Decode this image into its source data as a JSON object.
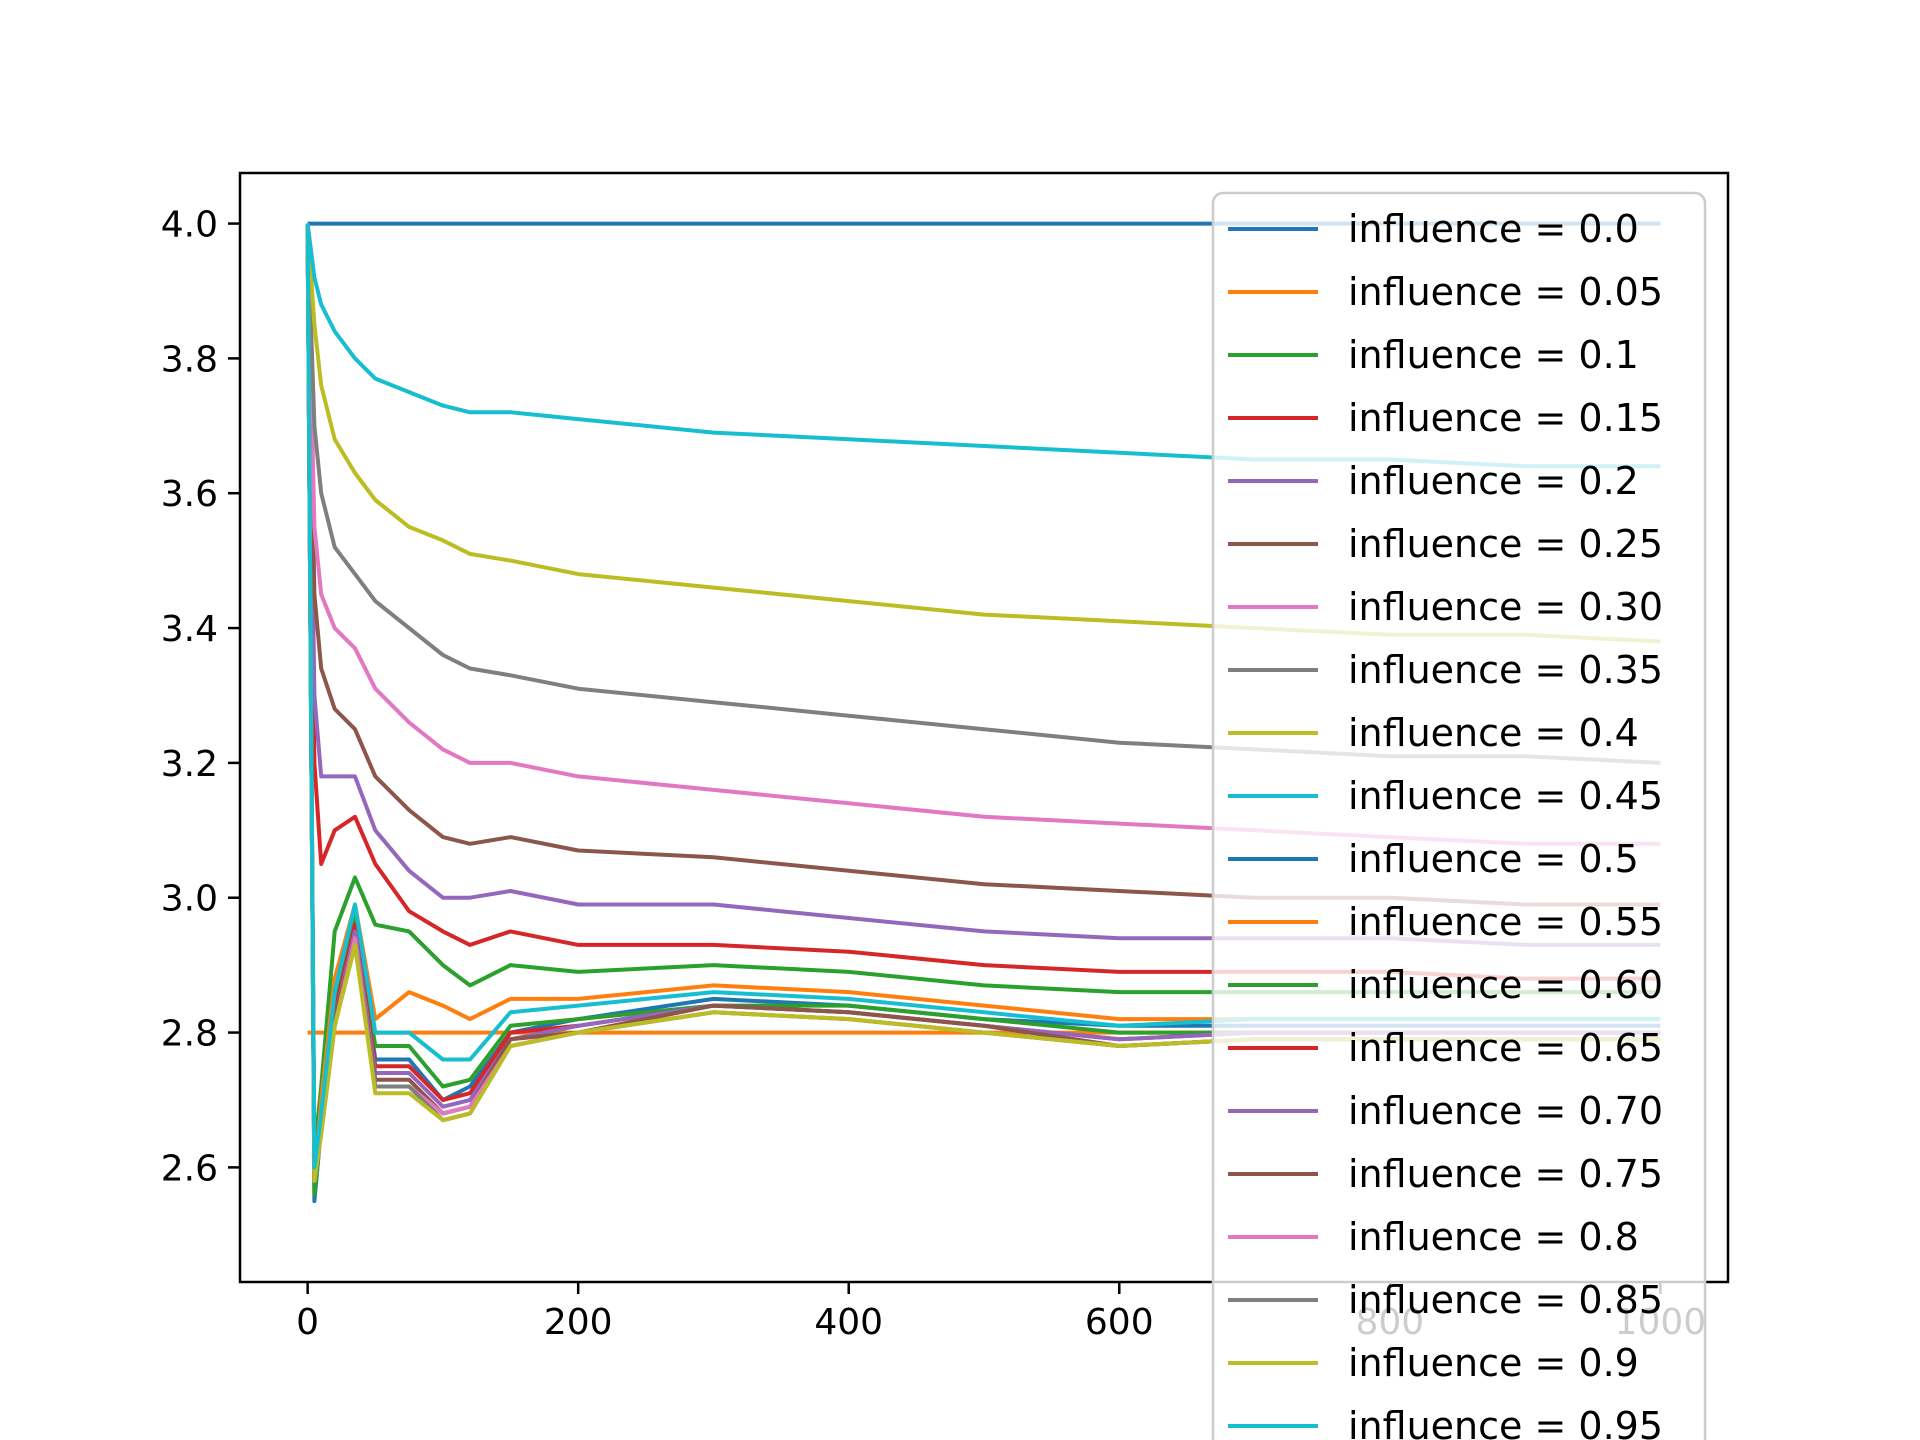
{
  "chart_data": {
    "type": "line",
    "title": "",
    "xlabel": "",
    "ylabel": "",
    "xlim": [
      -50,
      1050
    ],
    "ylim": [
      2.43,
      4.075
    ],
    "x_ticks": [
      0,
      200,
      400,
      600,
      800,
      1000
    ],
    "x_tick_labels": [
      "0",
      "200",
      "400",
      "600",
      "800",
      "1000"
    ],
    "y_ticks": [
      2.6,
      2.8,
      3.0,
      3.2,
      3.4,
      3.6,
      3.8,
      4.0
    ],
    "y_tick_labels": [
      "2.6",
      "2.8",
      "3.0",
      "3.2",
      "3.4",
      "3.6",
      "3.8",
      "4.0"
    ],
    "grid": false,
    "legend_position": "upper-right",
    "x": [
      0,
      5,
      10,
      20,
      35,
      50,
      75,
      100,
      120,
      150,
      200,
      300,
      400,
      500,
      600,
      700,
      800,
      900,
      1000
    ],
    "series": [
      {
        "name": "influence = 0.0",
        "color": "#1f77b4",
        "values": [
          4.0,
          4.0,
          4.0,
          4.0,
          4.0,
          4.0,
          4.0,
          4.0,
          4.0,
          4.0,
          4.0,
          4.0,
          4.0,
          4.0,
          4.0,
          4.0,
          4.0,
          4.0,
          4.0
        ]
      },
      {
        "name": "influence = 0.05",
        "color": "#ff7f0e",
        "values": [
          2.8,
          2.8,
          2.8,
          2.8,
          2.8,
          2.8,
          2.8,
          2.8,
          2.8,
          2.8,
          2.8,
          2.8,
          2.8,
          2.8,
          2.8,
          2.8,
          2.8,
          2.8,
          2.8
        ]
      },
      {
        "name": "influence = 0.1",
        "color": "#2ca02c",
        "values": [
          4.0,
          2.62,
          2.72,
          2.95,
          3.03,
          2.96,
          2.95,
          2.9,
          2.87,
          2.9,
          2.89,
          2.9,
          2.89,
          2.87,
          2.86,
          2.86,
          2.86,
          2.86,
          2.86
        ]
      },
      {
        "name": "influence = 0.15",
        "color": "#d62728",
        "values": [
          4.0,
          3.2,
          3.05,
          3.1,
          3.12,
          3.05,
          2.98,
          2.95,
          2.93,
          2.95,
          2.93,
          2.93,
          2.92,
          2.9,
          2.89,
          2.89,
          2.89,
          2.88,
          2.88
        ]
      },
      {
        "name": "influence = 0.2",
        "color": "#9467bd",
        "values": [
          4.0,
          3.3,
          3.18,
          3.18,
          3.18,
          3.1,
          3.04,
          3.0,
          3.0,
          3.01,
          2.99,
          2.99,
          2.97,
          2.95,
          2.94,
          2.94,
          2.94,
          2.93,
          2.93
        ]
      },
      {
        "name": "influence = 0.25",
        "color": "#8c564b",
        "values": [
          4.0,
          3.45,
          3.34,
          3.28,
          3.25,
          3.18,
          3.13,
          3.09,
          3.08,
          3.09,
          3.07,
          3.06,
          3.04,
          3.02,
          3.01,
          3.0,
          3.0,
          2.99,
          2.99
        ]
      },
      {
        "name": "influence = 0.30",
        "color": "#e377c2",
        "values": [
          4.0,
          3.55,
          3.45,
          3.4,
          3.37,
          3.31,
          3.26,
          3.22,
          3.2,
          3.2,
          3.18,
          3.16,
          3.14,
          3.12,
          3.11,
          3.1,
          3.09,
          3.08,
          3.08
        ]
      },
      {
        "name": "influence = 0.35",
        "color": "#7f7f7f",
        "values": [
          4.0,
          3.7,
          3.6,
          3.52,
          3.48,
          3.44,
          3.4,
          3.36,
          3.34,
          3.33,
          3.31,
          3.29,
          3.27,
          3.25,
          3.23,
          3.22,
          3.21,
          3.21,
          3.2
        ]
      },
      {
        "name": "influence = 0.4",
        "color": "#bcbd22",
        "values": [
          4.0,
          3.85,
          3.76,
          3.68,
          3.63,
          3.59,
          3.55,
          3.53,
          3.51,
          3.5,
          3.48,
          3.46,
          3.44,
          3.42,
          3.41,
          3.4,
          3.39,
          3.39,
          3.38
        ]
      },
      {
        "name": "influence = 0.45",
        "color": "#17becf",
        "values": [
          4.0,
          3.92,
          3.88,
          3.84,
          3.8,
          3.77,
          3.75,
          3.73,
          3.72,
          3.72,
          3.71,
          3.69,
          3.68,
          3.67,
          3.66,
          3.65,
          3.65,
          3.64,
          3.64
        ]
      },
      {
        "name": "influence = 0.5",
        "color": "#1f77b4",
        "values": [
          4.0,
          2.55,
          2.66,
          2.86,
          2.98,
          2.76,
          2.76,
          2.7,
          2.72,
          2.8,
          2.82,
          2.85,
          2.84,
          2.82,
          2.81,
          2.81,
          2.81,
          2.81,
          2.81
        ]
      },
      {
        "name": "influence = 0.55",
        "color": "#ff7f0e",
        "values": [
          4.0,
          2.57,
          2.7,
          2.88,
          2.99,
          2.82,
          2.86,
          2.84,
          2.82,
          2.85,
          2.85,
          2.87,
          2.86,
          2.84,
          2.82,
          2.82,
          2.82,
          2.82,
          2.82
        ]
      },
      {
        "name": "influence = 0.60",
        "color": "#2ca02c",
        "values": [
          4.0,
          2.56,
          2.66,
          2.84,
          2.97,
          2.78,
          2.78,
          2.72,
          2.73,
          2.81,
          2.82,
          2.84,
          2.84,
          2.82,
          2.8,
          2.8,
          2.8,
          2.8,
          2.8
        ]
      },
      {
        "name": "influence = 0.65",
        "color": "#d62728",
        "values": [
          4.0,
          2.58,
          2.66,
          2.83,
          2.96,
          2.75,
          2.75,
          2.7,
          2.71,
          2.8,
          2.81,
          2.84,
          2.83,
          2.81,
          2.79,
          2.8,
          2.8,
          2.8,
          2.8
        ]
      },
      {
        "name": "influence = 0.70",
        "color": "#9467bd",
        "values": [
          4.0,
          2.58,
          2.66,
          2.82,
          2.95,
          2.74,
          2.74,
          2.69,
          2.7,
          2.79,
          2.81,
          2.84,
          2.83,
          2.81,
          2.79,
          2.8,
          2.8,
          2.8,
          2.8
        ]
      },
      {
        "name": "influence = 0.75",
        "color": "#8c564b",
        "values": [
          4.0,
          2.58,
          2.66,
          2.82,
          2.94,
          2.73,
          2.73,
          2.68,
          2.69,
          2.79,
          2.8,
          2.84,
          2.83,
          2.81,
          2.78,
          2.79,
          2.79,
          2.79,
          2.79
        ]
      },
      {
        "name": "influence = 0.8",
        "color": "#e377c2",
        "values": [
          4.0,
          2.58,
          2.65,
          2.81,
          2.94,
          2.72,
          2.72,
          2.68,
          2.69,
          2.78,
          2.8,
          2.83,
          2.82,
          2.8,
          2.78,
          2.79,
          2.79,
          2.79,
          2.79
        ]
      },
      {
        "name": "influence = 0.85",
        "color": "#7f7f7f",
        "values": [
          4.0,
          2.58,
          2.65,
          2.81,
          2.93,
          2.72,
          2.72,
          2.67,
          2.68,
          2.78,
          2.8,
          2.83,
          2.82,
          2.8,
          2.78,
          2.79,
          2.79,
          2.79,
          2.79
        ]
      },
      {
        "name": "influence = 0.9",
        "color": "#bcbd22",
        "values": [
          4.0,
          2.58,
          2.65,
          2.81,
          2.93,
          2.71,
          2.71,
          2.67,
          2.68,
          2.78,
          2.8,
          2.83,
          2.82,
          2.8,
          2.78,
          2.79,
          2.79,
          2.79,
          2.79
        ]
      },
      {
        "name": "influence = 0.95",
        "color": "#17becf",
        "values": [
          4.0,
          2.6,
          2.68,
          2.86,
          2.99,
          2.8,
          2.8,
          2.76,
          2.76,
          2.83,
          2.84,
          2.86,
          2.85,
          2.83,
          2.81,
          2.82,
          2.82,
          2.82,
          2.82
        ]
      }
    ]
  }
}
